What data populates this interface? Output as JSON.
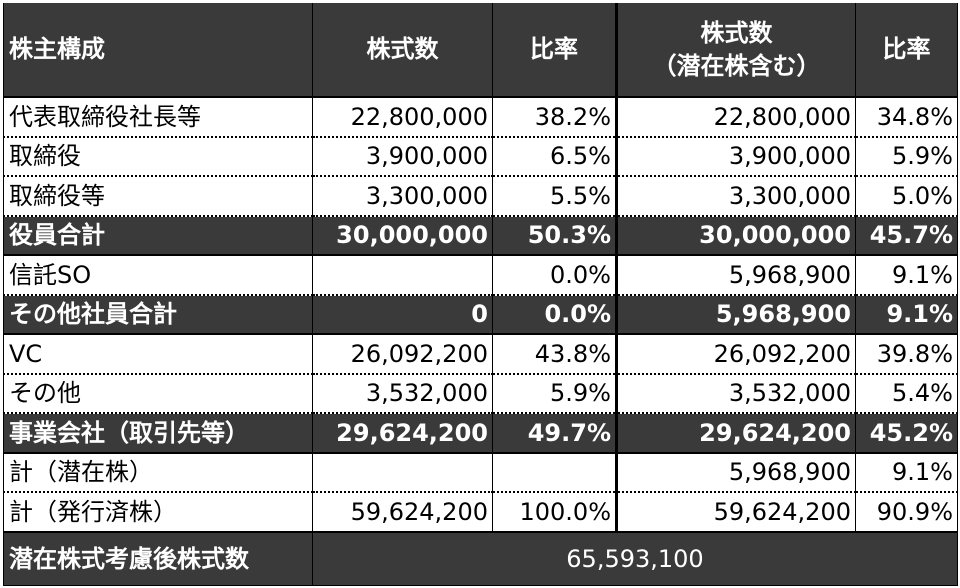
{
  "header": {
    "col_holder": "株主構成",
    "col_shares": "株式数",
    "col_ratio": "比率",
    "col_shares_diluted_line1": "株式数",
    "col_shares_diluted_line2": "（潜在株含む）",
    "col_ratio_diluted": "比率"
  },
  "rows": [
    {
      "holder": "代表取締役社長等",
      "shares": "22,800,000",
      "ratio": "38.2%",
      "shares_diluted": "22,800,000",
      "ratio_diluted": "34.8%",
      "style": "plain"
    },
    {
      "holder": "取締役",
      "shares": "3,900,000",
      "ratio": "6.5%",
      "shares_diluted": "3,900,000",
      "ratio_diluted": "5.9%",
      "style": "plain"
    },
    {
      "holder": "取締役等",
      "shares": "3,300,000",
      "ratio": "5.5%",
      "shares_diluted": "3,300,000",
      "ratio_diluted": "5.0%",
      "style": "plain"
    },
    {
      "holder": "役員合計",
      "shares": "30,000,000",
      "ratio": "50.3%",
      "shares_diluted": "30,000,000",
      "ratio_diluted": "45.7%",
      "style": "dark"
    },
    {
      "holder": "信託SO",
      "shares": "",
      "ratio": "0.0%",
      "shares_diluted": "5,968,900",
      "ratio_diluted": "9.1%",
      "style": "plain"
    },
    {
      "holder": "その他社員合計",
      "shares": "0",
      "ratio": "0.0%",
      "shares_diluted": "5,968,900",
      "ratio_diluted": "9.1%",
      "style": "dark"
    },
    {
      "holder": "VC",
      "shares": "26,092,200",
      "ratio": "43.8%",
      "shares_diluted": "26,092,200",
      "ratio_diluted": "39.8%",
      "style": "plain"
    },
    {
      "holder": "その他",
      "shares": "3,532,000",
      "ratio": "5.9%",
      "shares_diluted": "3,532,000",
      "ratio_diluted": "5.4%",
      "style": "plain"
    },
    {
      "holder": "事業会社（取引先等）",
      "shares": "29,624,200",
      "ratio": "49.7%",
      "shares_diluted": "29,624,200",
      "ratio_diluted": "45.2%",
      "style": "dark"
    },
    {
      "holder": "計（潜在株）",
      "shares": "",
      "ratio": "",
      "shares_diluted": "5,968,900",
      "ratio_diluted": "9.1%",
      "style": "plain"
    },
    {
      "holder": "計（発行済株）",
      "shares": "59,624,200",
      "ratio": "100.0%",
      "shares_diluted": "59,624,200",
      "ratio_diluted": "90.9%",
      "style": "plain"
    }
  ],
  "total": {
    "label": "潜在株式考慮後株式数",
    "value": "65,593,100"
  },
  "colors": {
    "dark_fill": "#3a3a3a",
    "header_text": "#ffffff",
    "body_text": "#000000"
  }
}
